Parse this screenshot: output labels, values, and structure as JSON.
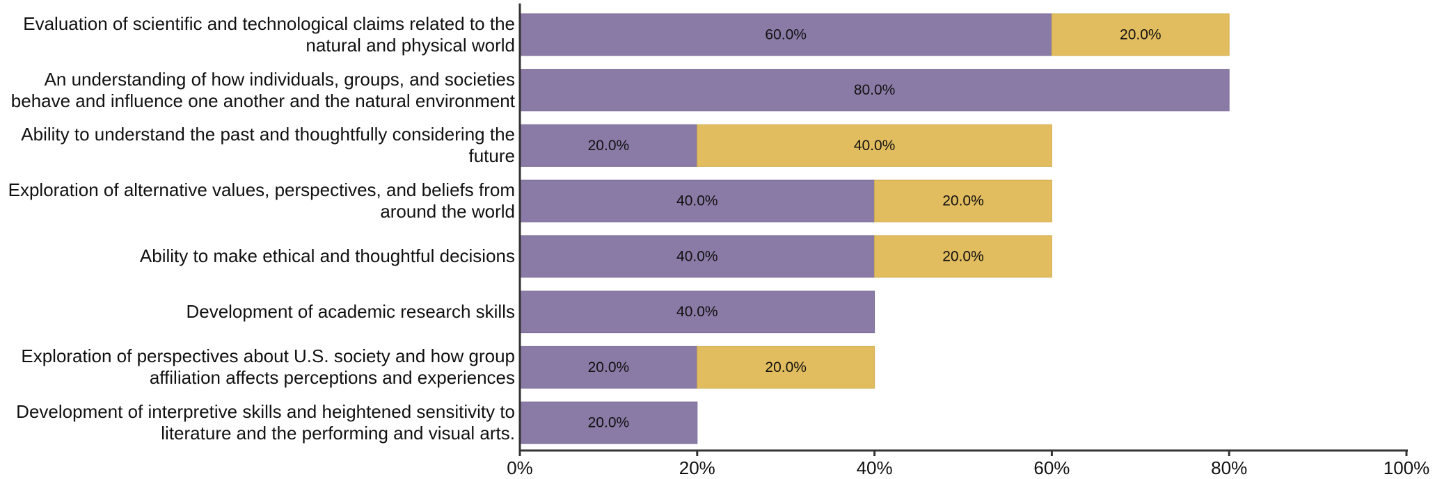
{
  "chart_data": {
    "type": "stacked-bar-horizontal",
    "categories": [
      "Evaluation of scientific and technological claims related to the natural and physical world",
      "An understanding of how individuals, groups, and societies behave and influence one another and the natural environment",
      "Ability to understand the past and thoughtfully considering the future",
      "Exploration of alternative values, perspectives, and beliefs from around the world",
      "Ability to make ethical and thoughtful decisions",
      "Development of academic research skills",
      "Exploration of perspectives about U.S. society and how group affiliation affects perceptions and experiences",
      "Development of interpretive skills and heightened sensitivity to literature and the performing and visual arts."
    ],
    "series": [
      {
        "color": "#8a7aa6",
        "values": [
          60,
          80,
          20,
          40,
          40,
          40,
          20,
          20
        ],
        "value_labels": [
          "60.0%",
          "80.0%",
          "20.0%",
          "40.0%",
          "40.0%",
          "40.0%",
          "20.0%",
          "20.0%"
        ]
      },
      {
        "color": "#e2bd5f",
        "values": [
          20,
          null,
          40,
          20,
          20,
          null,
          20,
          null
        ],
        "value_labels": [
          "20.0%",
          null,
          "40.0%",
          "20.0%",
          "20.0%",
          null,
          "20.0%",
          null
        ]
      }
    ],
    "xlim": [
      0,
      100
    ],
    "xticks": [
      {
        "value": 0,
        "label": "0%"
      },
      {
        "value": 20,
        "label": "20%"
      },
      {
        "value": 40,
        "label": "40%"
      },
      {
        "value": 60,
        "label": "60%"
      },
      {
        "value": 80,
        "label": "80%"
      },
      {
        "value": 100,
        "label": "100%"
      }
    ]
  }
}
